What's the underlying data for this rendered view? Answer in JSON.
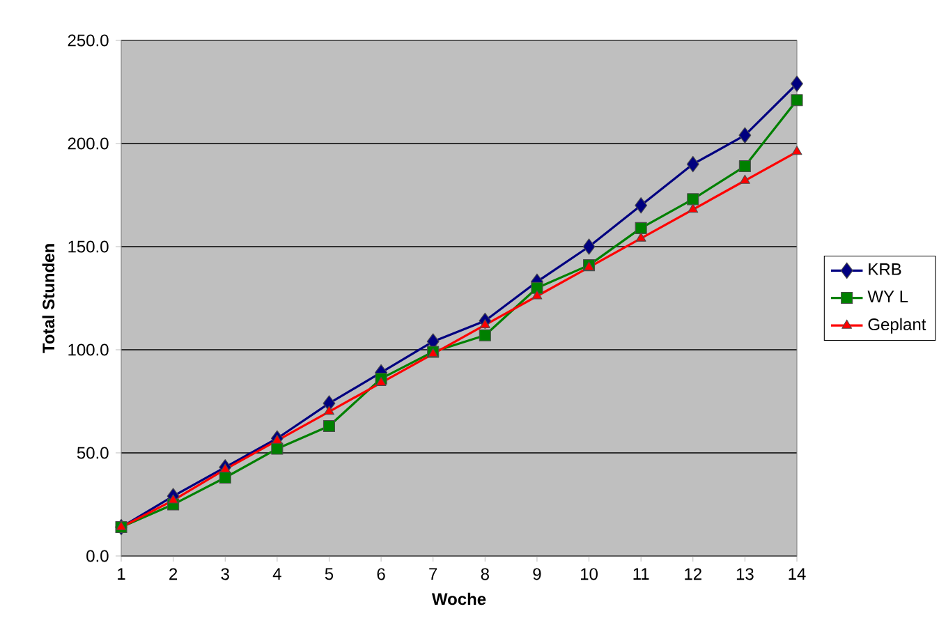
{
  "chart_data": {
    "type": "line",
    "xlabel": "Woche",
    "ylabel": "Total Stunden",
    "x": [
      1,
      2,
      3,
      4,
      5,
      6,
      7,
      8,
      9,
      10,
      11,
      12,
      13,
      14
    ],
    "series": [
      {
        "name": "KRB",
        "color": "#000080",
        "marker": "diamond",
        "values": [
          14,
          29,
          43,
          57,
          74,
          89,
          104,
          114,
          133,
          150,
          170,
          190,
          204,
          229
        ]
      },
      {
        "name": "WY L",
        "color": "#008000",
        "marker": "square",
        "values": [
          14,
          25,
          38,
          52,
          63,
          86,
          99,
          107,
          130,
          141,
          159,
          173,
          189,
          221
        ]
      },
      {
        "name": "Geplant",
        "color": "#ff0000",
        "marker": "triangle",
        "values": [
          14,
          27,
          42,
          56,
          70,
          84,
          98,
          112,
          126,
          140,
          154,
          168,
          182,
          196
        ]
      }
    ],
    "xlim": [
      1,
      14
    ],
    "xticks": [
      1,
      2,
      3,
      4,
      5,
      6,
      7,
      8,
      9,
      10,
      11,
      12,
      13,
      14
    ],
    "ylim": [
      0,
      250
    ],
    "yticks": [
      {
        "value": 0,
        "label": "0.0"
      },
      {
        "value": 50,
        "label": "50.0"
      },
      {
        "value": 100,
        "label": "100.0"
      },
      {
        "value": 150,
        "label": "150.0"
      },
      {
        "value": 200,
        "label": "200.0"
      },
      {
        "value": 250,
        "label": "250.0"
      }
    ],
    "grid": "y",
    "legend": "right"
  }
}
